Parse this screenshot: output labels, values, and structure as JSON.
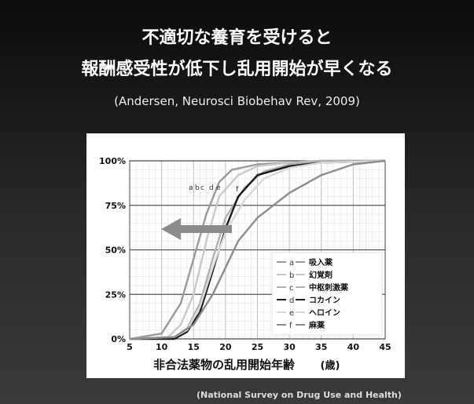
{
  "slide": {
    "title_line1": "不適切な養育を受けると",
    "title_line2": "報酬感受性が低下し乱用開始が早くなる",
    "citation": "(Andersen, Neurosci Biobehav Rev, 2009)",
    "source": "(National Survey on Drug Use and Health)"
  },
  "chart_data": {
    "type": "line",
    "xlabel": "非合法薬物の乱用開始年齢",
    "xunit": "(歳)",
    "ylabel": "",
    "xlim": [
      5,
      45
    ],
    "ylim": [
      0,
      100
    ],
    "x_ticks": [
      "5",
      "10",
      "15",
      "20",
      "25",
      "30",
      "35",
      "40",
      "45"
    ],
    "y_ticks": [
      "0%",
      "25%",
      "50%",
      "75%",
      "100%"
    ],
    "grid": true,
    "legend_position": "bottom-right",
    "arrow_direction": "left",
    "series": [
      {
        "name": "吸入薬",
        "label": "a",
        "color": "#9a9a9a",
        "x": [
          5,
          10,
          13,
          15,
          17,
          19,
          21,
          25,
          30,
          35,
          45
        ],
        "y": [
          0,
          3,
          20,
          45,
          70,
          88,
          95,
          98,
          99,
          100,
          100
        ]
      },
      {
        "name": "幻覚剤",
        "label": "b",
        "color": "#c8c8c8",
        "x": [
          5,
          11,
          13,
          15,
          17,
          19,
          22,
          25,
          30,
          35,
          45
        ],
        "y": [
          0,
          1,
          8,
          25,
          55,
          80,
          92,
          97,
          99,
          100,
          100
        ]
      },
      {
        "name": "中枢刺激薬",
        "label": "c",
        "color": "#b0b0b0",
        "x": [
          5,
          12,
          14,
          16,
          18,
          20,
          23,
          26,
          30,
          35,
          45
        ],
        "y": [
          0,
          1,
          6,
          20,
          45,
          68,
          85,
          94,
          98,
          100,
          100
        ]
      },
      {
        "name": "コカイン",
        "label": "d",
        "color": "#1a1a1a",
        "x": [
          5,
          12,
          14,
          16,
          18,
          20,
          22,
          25,
          30,
          35,
          45
        ],
        "y": [
          0,
          0,
          4,
          15,
          38,
          62,
          80,
          92,
          97,
          99,
          100
        ]
      },
      {
        "name": "ヘロイン",
        "label": "e",
        "color": "#d8d8d8",
        "x": [
          5,
          12,
          14,
          16,
          18,
          20,
          23,
          26,
          30,
          35,
          45
        ],
        "y": [
          0,
          1,
          5,
          18,
          40,
          60,
          78,
          90,
          96,
          99,
          100
        ]
      },
      {
        "name": "麻薬",
        "label": "f",
        "color": "#8c8c8c",
        "x": [
          5,
          12,
          15,
          18,
          20,
          22,
          25,
          30,
          35,
          40,
          45
        ],
        "y": [
          0,
          1,
          8,
          25,
          40,
          55,
          68,
          82,
          92,
          98,
          100
        ]
      }
    ]
  }
}
